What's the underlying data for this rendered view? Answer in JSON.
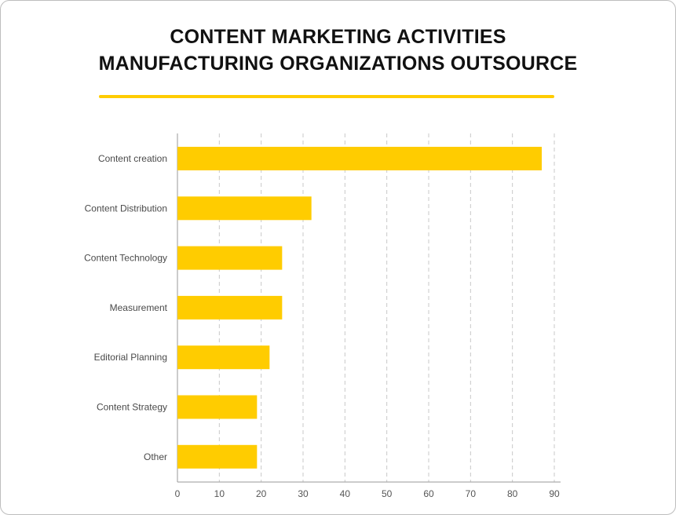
{
  "chart_data": {
    "type": "bar",
    "orientation": "horizontal",
    "title": [
      "CONTENT MARKETING ACTIVITIES",
      "MANUFACTURING ORGANIZATIONS OUTSOURCE"
    ],
    "categories": [
      "Content creation",
      "Content Distribution",
      "Content Technology",
      "Measurement",
      "Editorial Planning",
      "Content Strategy",
      "Other"
    ],
    "values": [
      87,
      32,
      25,
      25,
      22,
      19,
      19
    ],
    "xticks": [
      0,
      10,
      20,
      30,
      40,
      50,
      60,
      70,
      80,
      90
    ],
    "xlim": [
      0,
      90
    ],
    "grid": "vertical dashed",
    "bar_color": "#ffcc00",
    "accent_color": "#ffcc00"
  }
}
